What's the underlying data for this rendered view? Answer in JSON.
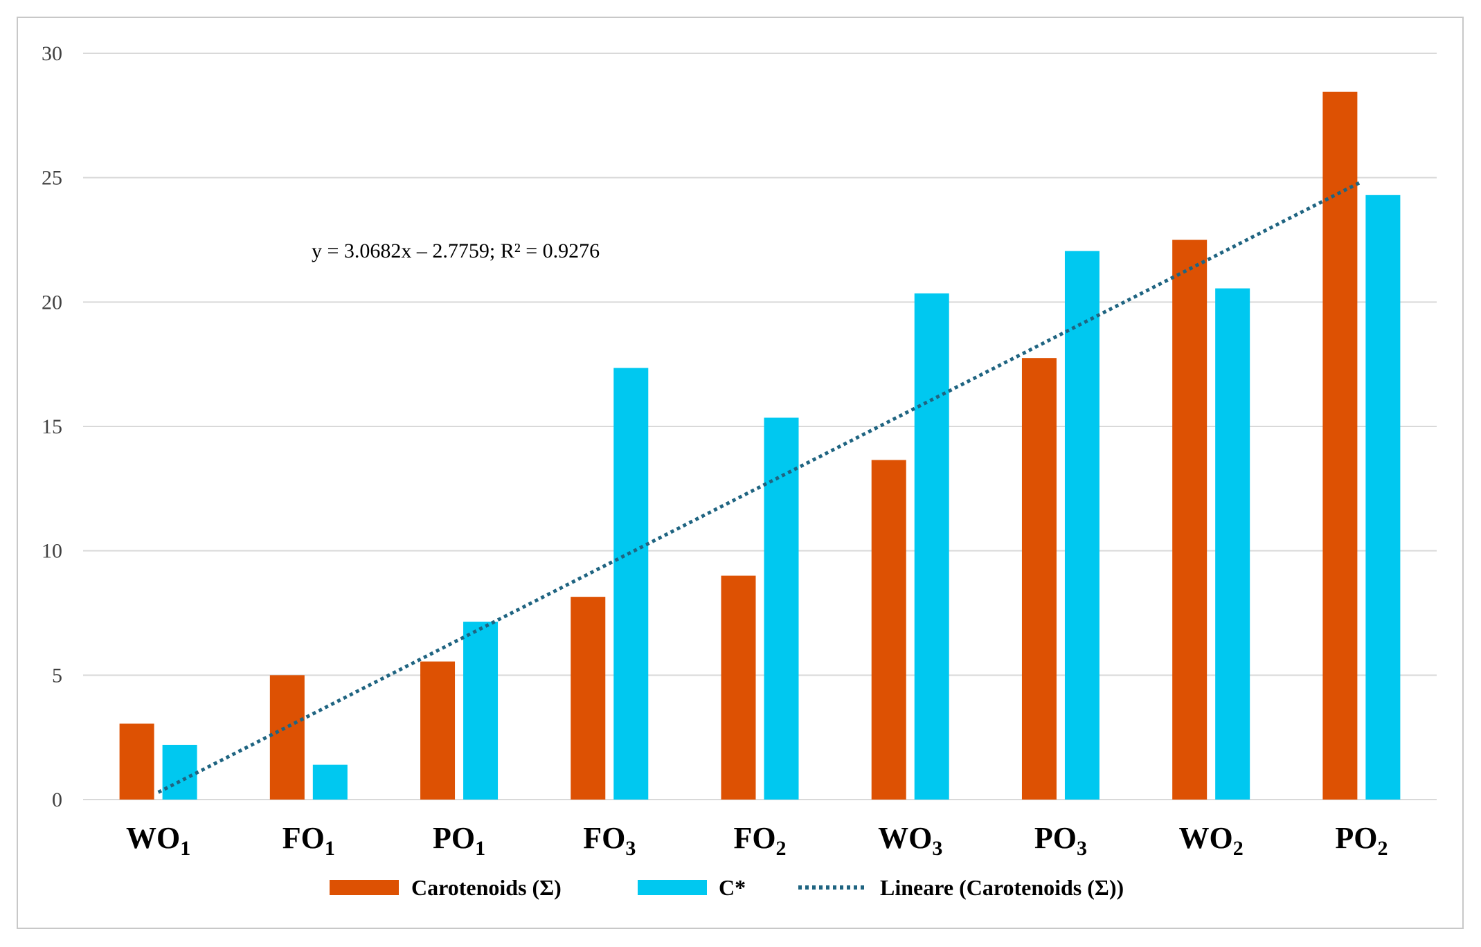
{
  "chart_data": {
    "type": "bar",
    "categories": [
      {
        "base": "WO",
        "sub": "1"
      },
      {
        "base": "FO",
        "sub": "1"
      },
      {
        "base": "PO",
        "sub": "1"
      },
      {
        "base": "FO",
        "sub": "3"
      },
      {
        "base": "FO",
        "sub": "2"
      },
      {
        "base": "WO",
        "sub": "3"
      },
      {
        "base": "PO",
        "sub": "3"
      },
      {
        "base": "WO",
        "sub": "2"
      },
      {
        "base": "PO",
        "sub": "2"
      }
    ],
    "series": [
      {
        "name": "Carotenoids (Σ)",
        "color": "#dd5103",
        "values": [
          3.05,
          5.0,
          5.55,
          8.15,
          9.0,
          13.65,
          17.75,
          22.5,
          28.45
        ]
      },
      {
        "name": "C*",
        "color": "#00c8f0",
        "values": [
          2.2,
          1.4,
          7.15,
          17.35,
          15.35,
          20.35,
          22.05,
          20.55,
          24.3
        ]
      }
    ],
    "trendline": {
      "name": "Lineare (Carotenoids (Σ))",
      "color": "#1f6481",
      "slope": 3.0682,
      "intercept": -2.7759,
      "equation_label": "y = 3.0682x – 2.7759; R² = 0.9276"
    },
    "y_ticks": [
      "0",
      "5",
      "10",
      "15",
      "20",
      "25",
      "30"
    ],
    "ylim": [
      0,
      30
    ],
    "title": "",
    "xlabel": "",
    "ylabel": "",
    "grid": true,
    "legend": "bottom"
  }
}
